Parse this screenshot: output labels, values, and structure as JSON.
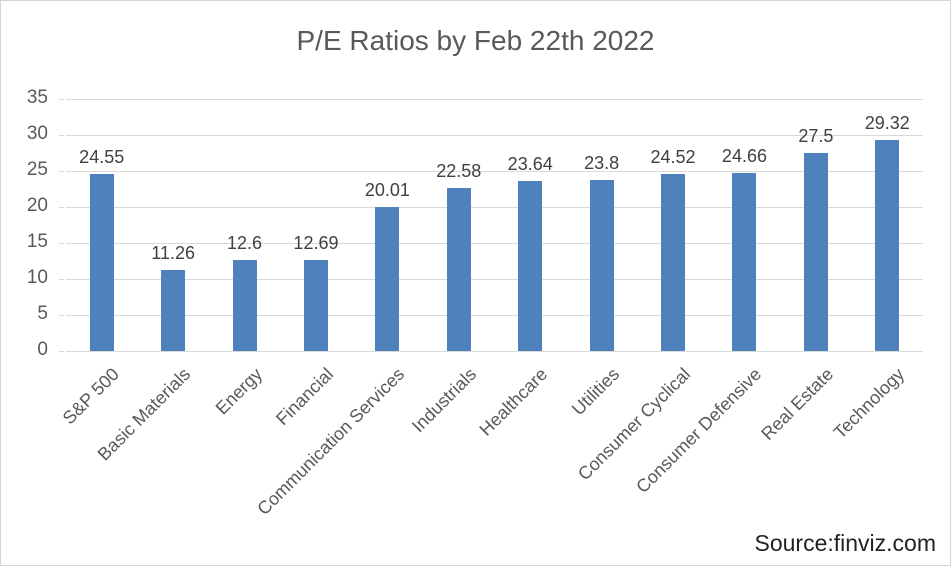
{
  "chart_data": {
    "type": "bar",
    "title": "P/E Ratios by Feb 22th 2022",
    "categories": [
      "S&P 500",
      "Basic Materials",
      "Energy",
      "Financial",
      "Communication Services",
      "Industrials",
      "Healthcare",
      "Utilities",
      "Consumer Cyclical",
      "Consumer Defensive",
      "Real Estate",
      "Technology"
    ],
    "values": [
      24.55,
      11.26,
      12.6,
      12.69,
      20.01,
      22.58,
      23.64,
      23.8,
      24.52,
      24.66,
      27.5,
      29.32
    ],
    "value_labels": [
      "24.55",
      "11.26",
      "12.6",
      "12.69",
      "20.01",
      "22.58",
      "23.64",
      "23.8",
      "24.52",
      "24.66",
      "27.5",
      "29.32"
    ],
    "xlabel": "",
    "ylabel": "",
    "ylim": [
      0,
      35
    ],
    "y_ticks": [
      0,
      5,
      10,
      15,
      20,
      25,
      30,
      35
    ],
    "grid": "horizontal",
    "legend": "none"
  },
  "source_label": "Source:finviz.com",
  "colors": {
    "bar": "#4F81BD",
    "gridline": "#D9D9D9",
    "title_text": "#595959",
    "axis_text": "#595959",
    "data_label_text": "#404040",
    "source_text": "#222222",
    "background": "#FFFFFF",
    "border": "#D5D5D5"
  }
}
